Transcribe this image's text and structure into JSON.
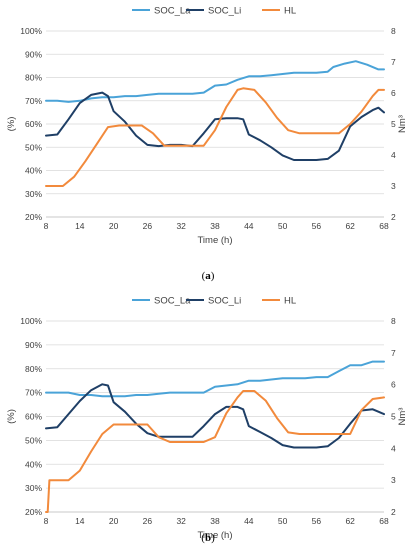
{
  "chart_data": [
    {
      "type": "line",
      "caption_open": "(",
      "caption_letter": "a",
      "caption_close": ")",
      "xlabel": "Time (h)",
      "ylabel": "(%)",
      "y2label": "Nm³",
      "xticks": [
        8,
        14,
        20,
        26,
        32,
        38,
        44,
        50,
        56,
        62,
        68
      ],
      "xlim": [
        8,
        68
      ],
      "ylim": [
        20,
        100
      ],
      "yticks": [
        "20%",
        "30%",
        "40%",
        "50%",
        "60%",
        "70%",
        "80%",
        "90%",
        "100%"
      ],
      "y2lim": [
        2,
        8
      ],
      "y2ticks": [
        "2",
        "3",
        "4",
        "5",
        "6",
        "7",
        "8"
      ],
      "grid": "horizontal",
      "legend_position": "top",
      "series": [
        {
          "name": "SOC_La",
          "axis": "left",
          "color": "#4aa3d8",
          "x": [
            8,
            10,
            12,
            14,
            16,
            18,
            20,
            22,
            24,
            26,
            28,
            30,
            32,
            34,
            36,
            38,
            40,
            42,
            44,
            46,
            48,
            50,
            52,
            54,
            56,
            58,
            59,
            61,
            63,
            65,
            67,
            68
          ],
          "y": [
            70,
            70,
            69.5,
            70,
            71,
            71.5,
            71.5,
            72,
            72,
            72.5,
            73,
            73,
            73,
            73,
            73.5,
            76.5,
            77,
            79,
            80.5,
            80.5,
            81,
            81.5,
            82,
            82,
            82,
            82.5,
            84.5,
            86,
            87,
            85.5,
            83.5,
            83.5
          ]
        },
        {
          "name": "SOC_Li",
          "axis": "left",
          "color": "#1f3f66",
          "x": [
            8,
            10,
            12,
            14,
            16,
            18,
            19,
            20,
            22,
            24,
            26,
            28,
            30,
            32,
            34,
            36,
            38,
            40,
            42,
            43,
            44,
            46,
            48,
            50,
            52,
            54,
            56,
            58,
            60,
            62,
            64,
            66,
            67,
            68
          ],
          "y": [
            55,
            55.5,
            62,
            69,
            72.5,
            73.5,
            72,
            65.5,
            61,
            55,
            51,
            50.5,
            51,
            51,
            50.5,
            56,
            62,
            62.5,
            62.5,
            62,
            55.5,
            53,
            50,
            46.5,
            44.5,
            44.5,
            44.5,
            45,
            48.5,
            59,
            63,
            66,
            67,
            65
          ]
        },
        {
          "name": "HL",
          "axis": "right",
          "color": "#f28a3c",
          "x": [
            8,
            9,
            11,
            13,
            15,
            17,
            19,
            21,
            23,
            25,
            27,
            29,
            31,
            33,
            35,
            36,
            38,
            40,
            42,
            43,
            45,
            47,
            49,
            51,
            53,
            55,
            57,
            59,
            60,
            62,
            64,
            66,
            67,
            68
          ],
          "y": [
            3.0,
            3.0,
            3.0,
            3.3,
            3.8,
            4.35,
            4.9,
            4.95,
            4.95,
            4.95,
            4.7,
            4.3,
            4.3,
            4.3,
            4.3,
            4.3,
            4.8,
            5.55,
            6.1,
            6.15,
            6.1,
            5.7,
            5.2,
            4.8,
            4.7,
            4.7,
            4.7,
            4.7,
            4.7,
            5.0,
            5.4,
            5.9,
            6.1,
            6.1
          ]
        }
      ]
    },
    {
      "type": "line",
      "caption_open": "(",
      "caption_letter": "b",
      "caption_close": ")",
      "xlabel": "Time (h)",
      "ylabel": "(%)",
      "y2label": "Nm³",
      "xticks": [
        8,
        14,
        20,
        26,
        32,
        38,
        44,
        50,
        56,
        62,
        68
      ],
      "xlim": [
        8,
        68
      ],
      "ylim": [
        20,
        100
      ],
      "yticks": [
        "20%",
        "30%",
        "40%",
        "50%",
        "60%",
        "70%",
        "80%",
        "90%",
        "100%"
      ],
      "y2lim": [
        2,
        8
      ],
      "y2ticks": [
        "2",
        "3",
        "4",
        "5",
        "6",
        "7",
        "8"
      ],
      "grid": "horizontal",
      "legend_position": "top",
      "series": [
        {
          "name": "SOC_La",
          "axis": "left",
          "color": "#4aa3d8",
          "x": [
            8,
            10,
            12,
            14,
            16,
            18,
            20,
            22,
            24,
            26,
            28,
            30,
            32,
            34,
            36,
            38,
            40,
            42,
            44,
            46,
            48,
            50,
            52,
            54,
            56,
            58,
            60,
            62,
            64,
            66,
            68
          ],
          "y": [
            70,
            70,
            70,
            69,
            69,
            68.5,
            68.5,
            68.5,
            69,
            69,
            69.5,
            70,
            70,
            70,
            70,
            72.5,
            73,
            73.5,
            75,
            75,
            75.5,
            76,
            76,
            76,
            76.5,
            76.5,
            79,
            81.5,
            81.5,
            83,
            83
          ]
        },
        {
          "name": "SOC_Li",
          "axis": "left",
          "color": "#1f3f66",
          "x": [
            8,
            10,
            12,
            14,
            16,
            18,
            19,
            20,
            22,
            24,
            26,
            28,
            30,
            32,
            34,
            36,
            38,
            40,
            42,
            43,
            44,
            46,
            48,
            50,
            52,
            54,
            56,
            58,
            60,
            62,
            64,
            66,
            67,
            68
          ],
          "y": [
            55,
            55.5,
            61,
            66.5,
            71,
            73.5,
            73,
            66,
            62,
            57,
            53,
            51.5,
            51.5,
            51.5,
            51.5,
            56,
            61,
            64,
            64,
            63,
            56,
            53.5,
            51,
            48,
            47,
            47,
            47,
            47.5,
            51,
            57,
            62.5,
            63,
            62,
            61
          ]
        },
        {
          "name": "HL",
          "axis": "right",
          "color": "#f28a3c",
          "x": [
            8,
            8.3,
            8.6,
            10,
            12,
            14,
            16,
            18,
            20,
            22,
            24,
            26,
            28,
            30,
            32,
            34,
            36,
            38,
            40,
            42,
            43,
            45,
            47,
            49,
            51,
            53,
            55,
            57,
            59,
            61,
            62,
            64,
            66,
            68
          ],
          "y": [
            2.0,
            2.0,
            3.0,
            3.0,
            3.0,
            3.3,
            3.9,
            4.45,
            4.75,
            4.75,
            4.75,
            4.75,
            4.35,
            4.2,
            4.2,
            4.2,
            4.2,
            4.35,
            5.1,
            5.6,
            5.8,
            5.8,
            5.5,
            4.95,
            4.5,
            4.45,
            4.45,
            4.45,
            4.45,
            4.45,
            4.45,
            5.2,
            5.55,
            5.6
          ]
        }
      ]
    }
  ]
}
